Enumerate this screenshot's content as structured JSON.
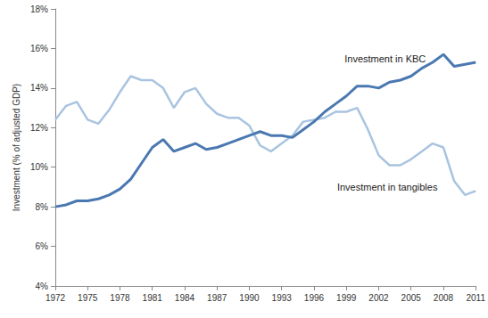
{
  "chart_data": {
    "type": "line",
    "y_label": "Investment (% of adjusted GDP)",
    "x": [
      1972,
      1973,
      1974,
      1975,
      1976,
      1977,
      1978,
      1979,
      1980,
      1981,
      1982,
      1983,
      1984,
      1985,
      1986,
      1987,
      1988,
      1989,
      1990,
      1991,
      1992,
      1993,
      1994,
      1995,
      1996,
      1997,
      1998,
      1999,
      2000,
      2001,
      2002,
      2003,
      2004,
      2005,
      2006,
      2007,
      2008,
      2009,
      2010,
      2011
    ],
    "series": [
      {
        "name": "Investment in KBC",
        "color": "#4a78b0",
        "values": [
          8.0,
          8.1,
          8.3,
          8.3,
          8.4,
          8.6,
          8.9,
          9.4,
          10.2,
          11.0,
          11.4,
          10.8,
          11.0,
          11.2,
          10.9,
          11.0,
          11.2,
          11.4,
          11.6,
          11.8,
          11.6,
          11.6,
          11.5,
          11.9,
          12.3,
          12.8,
          13.2,
          13.6,
          14.1,
          14.1,
          14.0,
          14.3,
          14.4,
          14.6,
          15.0,
          15.3,
          15.7,
          15.1,
          15.2,
          15.3
        ]
      },
      {
        "name": "Investment in tangibles",
        "color": "#a9c4e0",
        "values": [
          12.4,
          13.1,
          13.3,
          12.4,
          12.2,
          12.9,
          13.8,
          14.6,
          14.4,
          14.4,
          14.0,
          13.0,
          13.8,
          14.0,
          13.2,
          12.7,
          12.5,
          12.5,
          12.1,
          11.1,
          10.8,
          11.2,
          11.6,
          12.3,
          12.4,
          12.5,
          12.8,
          12.8,
          13.0,
          11.9,
          10.6,
          10.1,
          10.1,
          10.4,
          10.8,
          11.2,
          11.0,
          9.3,
          8.6,
          8.8
        ]
      }
    ],
    "annotations": [
      {
        "text": "Investment in KBC",
        "x": 2002.6,
        "y": 15.5
      },
      {
        "text": "Investment in tangibles",
        "x": 2002.8,
        "y": 9.0
      }
    ],
    "xlim": [
      1972,
      2011
    ],
    "xticks": [
      1972,
      1975,
      1978,
      1981,
      1984,
      1987,
      1990,
      1993,
      1996,
      1999,
      2002,
      2005,
      2008,
      2011
    ],
    "ylim": [
      4,
      18
    ],
    "yticks": [
      {
        "value": 4,
        "label": "4%"
      },
      {
        "value": 6,
        "label": "6%"
      },
      {
        "value": 8,
        "label": "8%"
      },
      {
        "value": 10,
        "label": "10%"
      },
      {
        "value": 12,
        "label": "12%"
      },
      {
        "value": 14,
        "label": "14%"
      },
      {
        "value": 16,
        "label": "16%"
      },
      {
        "value": 18,
        "label": "18%"
      }
    ],
    "grid": false
  }
}
